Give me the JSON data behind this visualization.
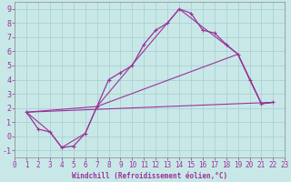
{
  "title": "",
  "xlabel": "Windchill (Refroidissement éolien,°C)",
  "bg_color": "#c8e8e8",
  "grid_color": "#a8cccc",
  "line_color": "#993399",
  "xlim": [
    0,
    23
  ],
  "ylim": [
    -1.5,
    9.5
  ],
  "xticks": [
    0,
    1,
    2,
    3,
    4,
    5,
    6,
    7,
    8,
    9,
    10,
    11,
    12,
    13,
    14,
    15,
    16,
    17,
    18,
    19,
    20,
    21,
    22,
    23
  ],
  "yticks": [
    -1,
    0,
    1,
    2,
    3,
    4,
    5,
    6,
    7,
    8,
    9
  ],
  "line1_x": [
    1,
    2,
    3,
    4,
    5,
    6,
    7,
    8,
    9,
    10,
    11,
    12,
    13,
    14,
    15,
    16,
    17,
    18,
    19,
    20,
    21,
    22
  ],
  "line1_y": [
    1.7,
    0.5,
    0.3,
    -0.8,
    -0.7,
    0.2,
    2.1,
    4.0,
    4.5,
    5.0,
    6.5,
    7.5,
    8.0,
    9.0,
    8.7,
    7.5,
    7.3,
    6.5,
    5.8,
    4.0,
    2.3,
    2.4
  ],
  "line2_x": [
    1,
    3,
    4,
    6,
    7,
    14,
    19,
    21,
    22
  ],
  "line2_y": [
    1.7,
    0.3,
    -0.8,
    0.2,
    2.1,
    9.0,
    5.8,
    2.3,
    2.4
  ],
  "line3_x": [
    1,
    22
  ],
  "line3_y": [
    1.7,
    2.4
  ],
  "line4_x": [
    1,
    7,
    19,
    21,
    22
  ],
  "line4_y": [
    1.7,
    2.1,
    5.8,
    2.3,
    2.4
  ],
  "xlabel_color": "#993399",
  "xlabel_fontsize": 5.5,
  "tick_fontsize": 5.5,
  "tick_color": "#993399"
}
